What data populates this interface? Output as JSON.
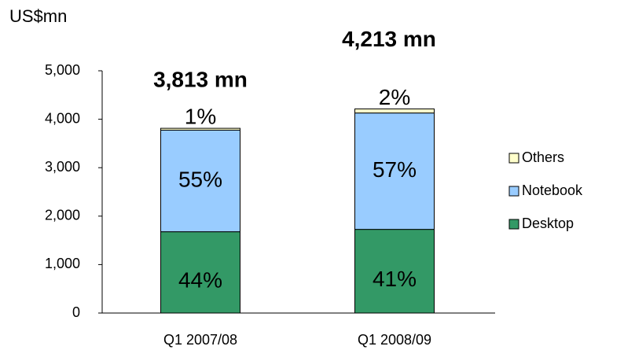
{
  "chart_data": {
    "type": "stacked_bar",
    "y_label": "US$mn",
    "categories": [
      "Q1 2007/08",
      "Q1 2008/09"
    ],
    "series": [
      {
        "name": "Desktop",
        "color": "#339966",
        "values": [
          1678,
          1727
        ],
        "value_labels": [
          "44%",
          "41%"
        ]
      },
      {
        "name": "Notebook",
        "color": "#99ccff",
        "values": [
          2097,
          2402
        ],
        "value_labels": [
          "55%",
          "57%"
        ]
      },
      {
        "name": "Others",
        "color": "#ffffcc",
        "values": [
          38,
          84
        ],
        "value_labels": [
          "1%",
          "2%"
        ]
      }
    ],
    "totals": {
      "values": [
        3813,
        4213
      ],
      "value_labels": [
        "3,813 mn",
        "4,213 mn"
      ]
    },
    "ylim": [
      0,
      5000
    ],
    "yticks": [
      0,
      {
        "value": 1000,
        "label": "1,000"
      },
      {
        "value": 2000,
        "label": "2,000"
      },
      {
        "value": 3000,
        "label": "3,000"
      },
      {
        "value": 4000,
        "label": "4,000"
      },
      {
        "value": 5000,
        "label": "5,000"
      }
    ],
    "legend": "right"
  }
}
